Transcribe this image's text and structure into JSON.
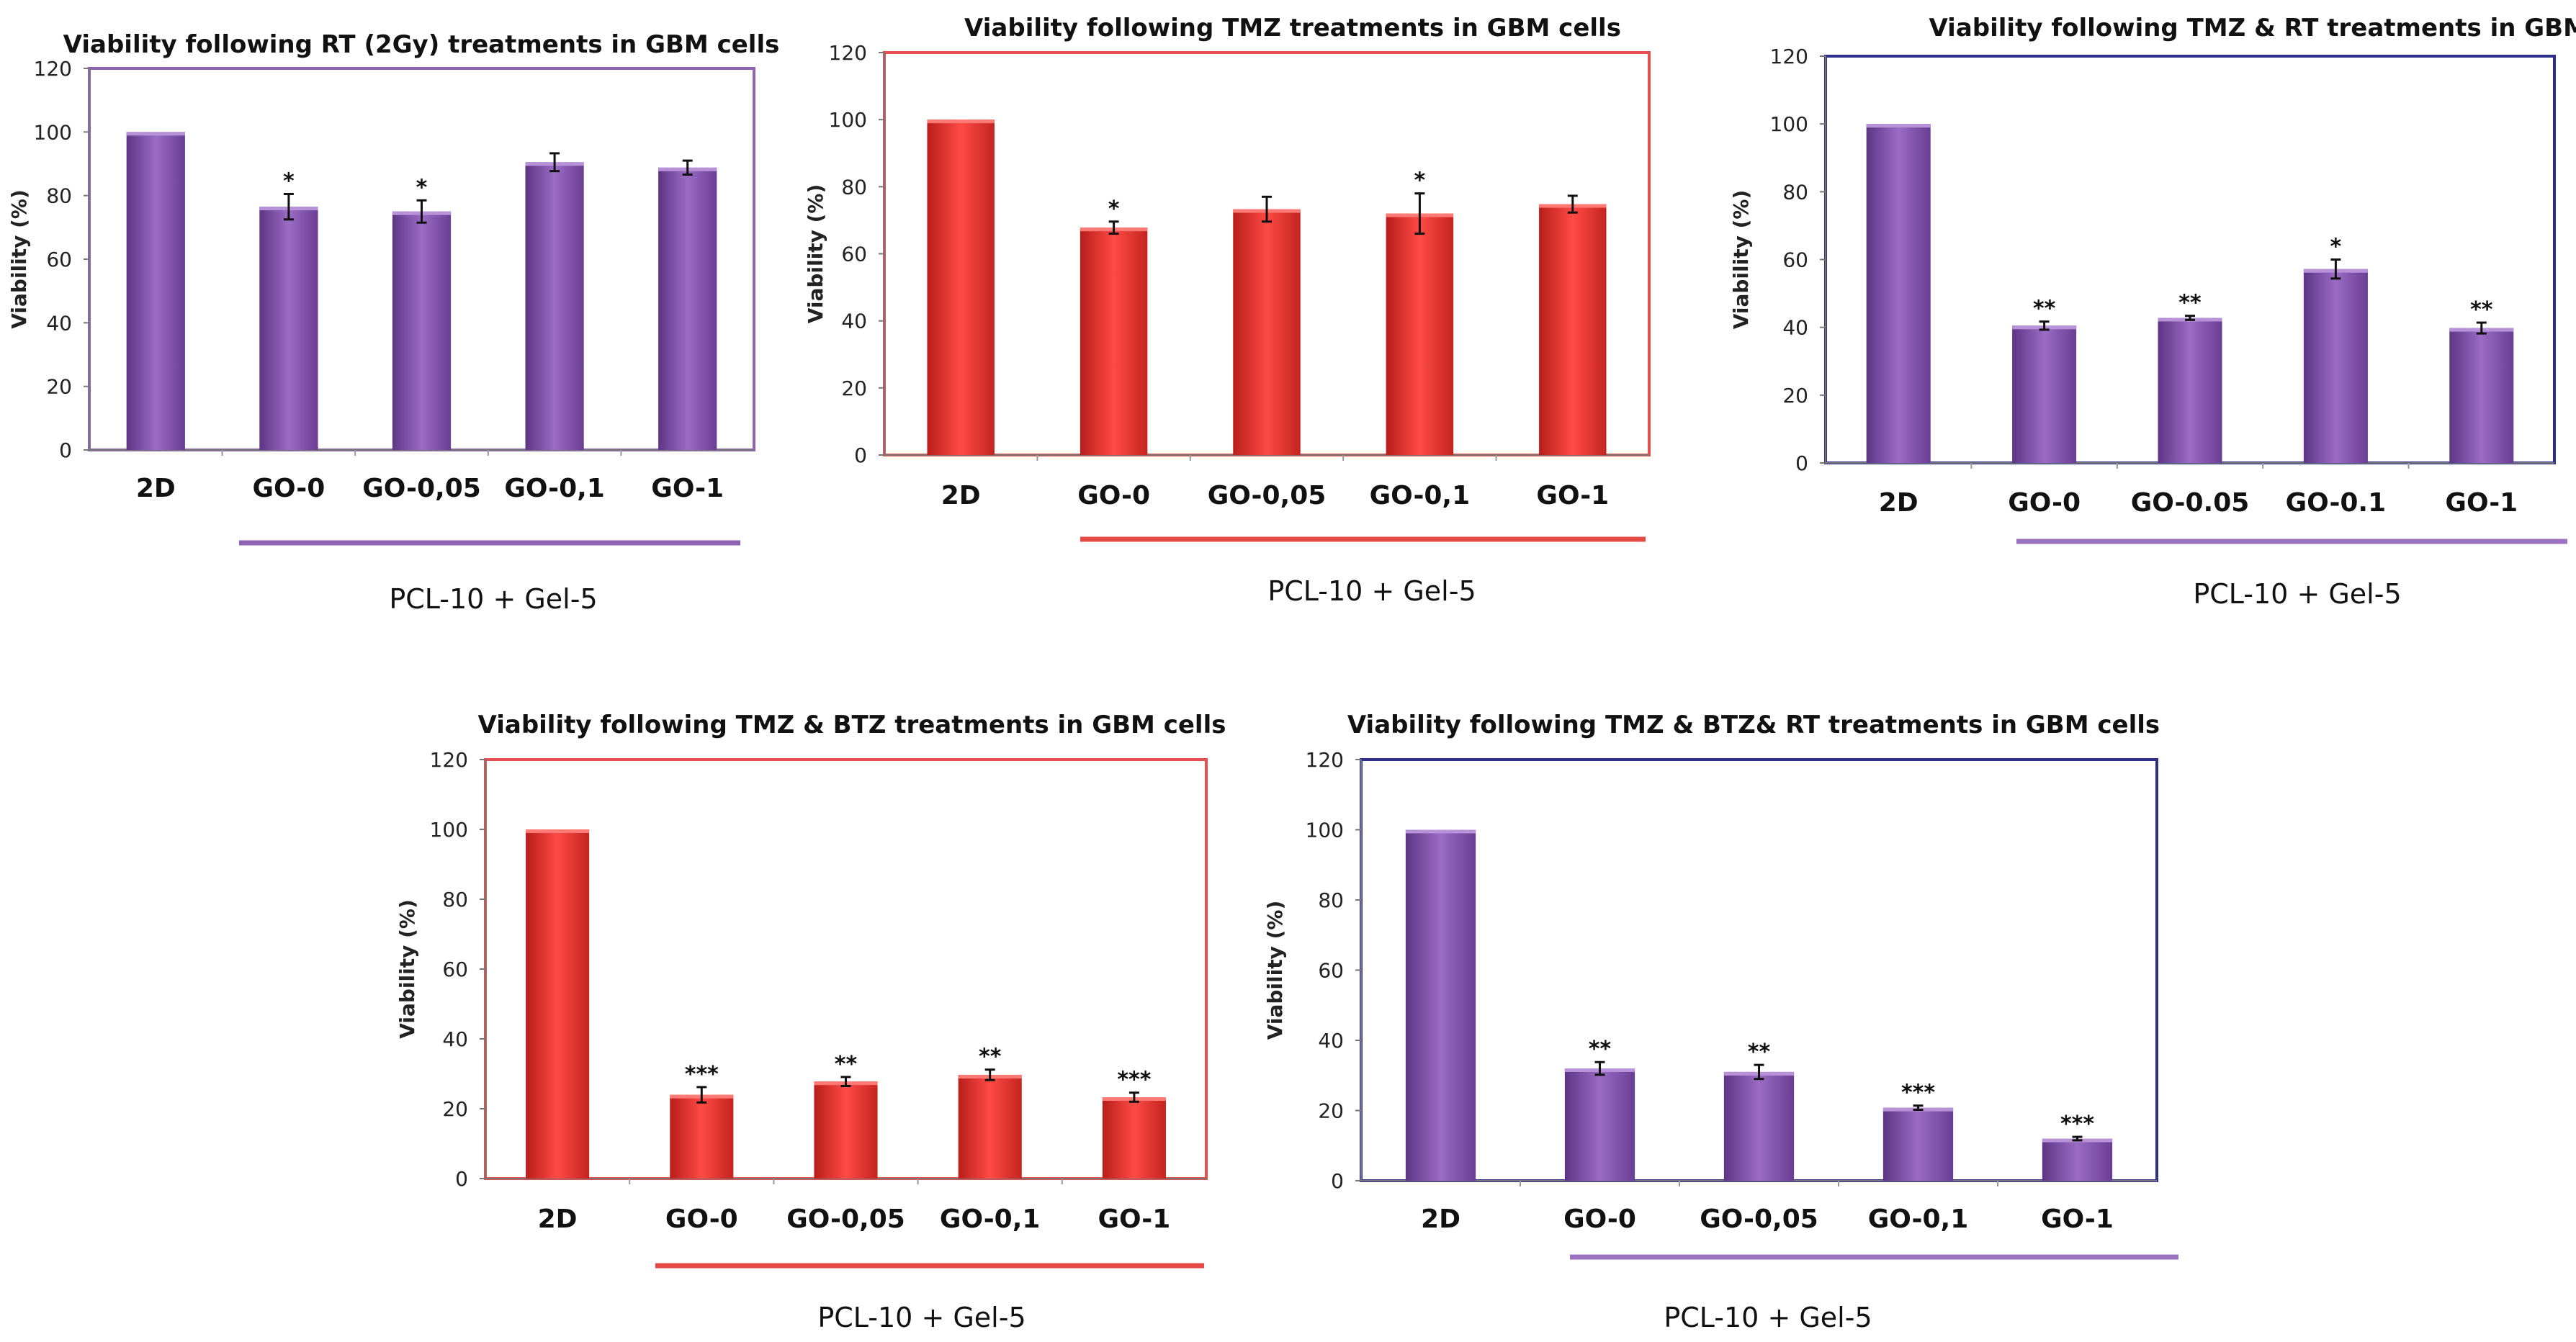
{
  "chart_data": [
    {
      "type": "bar",
      "title": "Viability following RT (2Gy) treatments in GBM cells",
      "ylabel": "Viability (%)",
      "xlabel": "",
      "ylim": [
        0,
        120
      ],
      "yticks": [
        0,
        20,
        40,
        60,
        80,
        100,
        120
      ],
      "categories": [
        "2D",
        "GO-0",
        "GO-0,05",
        "GO-0,1",
        "GO-1"
      ],
      "values": [
        100,
        76.5,
        75,
        90.5,
        88.8
      ],
      "errors": [
        0,
        4,
        3.5,
        2.8,
        2.2
      ],
      "significance": [
        "",
        "*",
        "*",
        "",
        ""
      ],
      "group_label": "PCL-10 + Gel-5",
      "bar_color": "#7E4FA3",
      "frame_color": "#8E63B3",
      "group_line_color": "#8E63B3"
    },
    {
      "type": "bar",
      "title": "Viability following TMZ treatments in GBM cells",
      "ylabel": "Viability (%)",
      "xlabel": "",
      "ylim": [
        0,
        120
      ],
      "yticks": [
        0,
        20,
        40,
        60,
        80,
        100,
        120
      ],
      "categories": [
        "2D",
        "GO-0",
        "GO-0,05",
        "GO-0,1",
        "GO-1"
      ],
      "values": [
        100,
        67.8,
        73.3,
        72,
        74.8
      ],
      "errors": [
        0,
        1.8,
        3.7,
        6,
        2.5
      ],
      "significance": [
        "",
        "*",
        "",
        "*",
        ""
      ],
      "group_label": "PCL-10 + Gel-5",
      "bar_color": "#E8302C",
      "frame_color": "#E55050",
      "group_line_color": "#E54A45"
    },
    {
      "type": "bar",
      "title": "Viability following TMZ & RT treatments in GBM cells",
      "ylabel": "Viability (%)",
      "xlabel": "",
      "ylim": [
        0,
        120
      ],
      "yticks": [
        0,
        20,
        40,
        60,
        80,
        100,
        120
      ],
      "categories": [
        "2D",
        "GO-0",
        "GO-0.05",
        "GO-0.1",
        "GO-1"
      ],
      "values": [
        100,
        40.5,
        42.8,
        57.2,
        39.8
      ],
      "errors": [
        0,
        1.2,
        0.6,
        2.8,
        1.6
      ],
      "significance": [
        "",
        "**",
        "**",
        "*",
        "**"
      ],
      "group_label": "PCL-10 + Gel-5",
      "bar_color": "#7E4FA3",
      "frame_color": "#2E2F8A",
      "group_line_color": "#9A72C0"
    },
    {
      "type": "bar",
      "title": "Viability following TMZ & BTZ treatments in GBM cells",
      "ylabel": "Viability (%)",
      "xlabel": "",
      "ylim": [
        0,
        120
      ],
      "yticks": [
        0,
        20,
        40,
        60,
        80,
        100,
        120
      ],
      "categories": [
        "2D",
        "GO-0",
        "GO-0,05",
        "GO-0,1",
        "GO-1"
      ],
      "values": [
        100,
        24,
        27.8,
        29.7,
        23.3
      ],
      "errors": [
        0,
        2.2,
        1.3,
        1.5,
        1.3
      ],
      "significance": [
        "",
        "***",
        "**",
        "**",
        "***"
      ],
      "group_label": "PCL-10 + Gel-5",
      "bar_color": "#E8302C",
      "frame_color": "#E55050",
      "group_line_color": "#E54A45"
    },
    {
      "type": "bar",
      "title": "Viability following TMZ & BTZ& RT treatments in GBM cells",
      "ylabel": "Viability (%)",
      "xlabel": "",
      "ylim": [
        0,
        120
      ],
      "yticks": [
        0,
        20,
        40,
        60,
        80,
        100,
        120
      ],
      "categories": [
        "2D",
        "GO-0",
        "GO-0,05",
        "GO-0,1",
        "GO-1"
      ],
      "values": [
        100,
        32,
        31,
        20.8,
        12
      ],
      "errors": [
        0,
        1.8,
        2,
        0.6,
        0.5
      ],
      "significance": [
        "",
        "**",
        "**",
        "***",
        "***"
      ],
      "group_label": "PCL-10 + Gel-5",
      "bar_color": "#7E4FA3",
      "frame_color": "#2E2F8A",
      "group_line_color": "#9A72C0"
    }
  ]
}
